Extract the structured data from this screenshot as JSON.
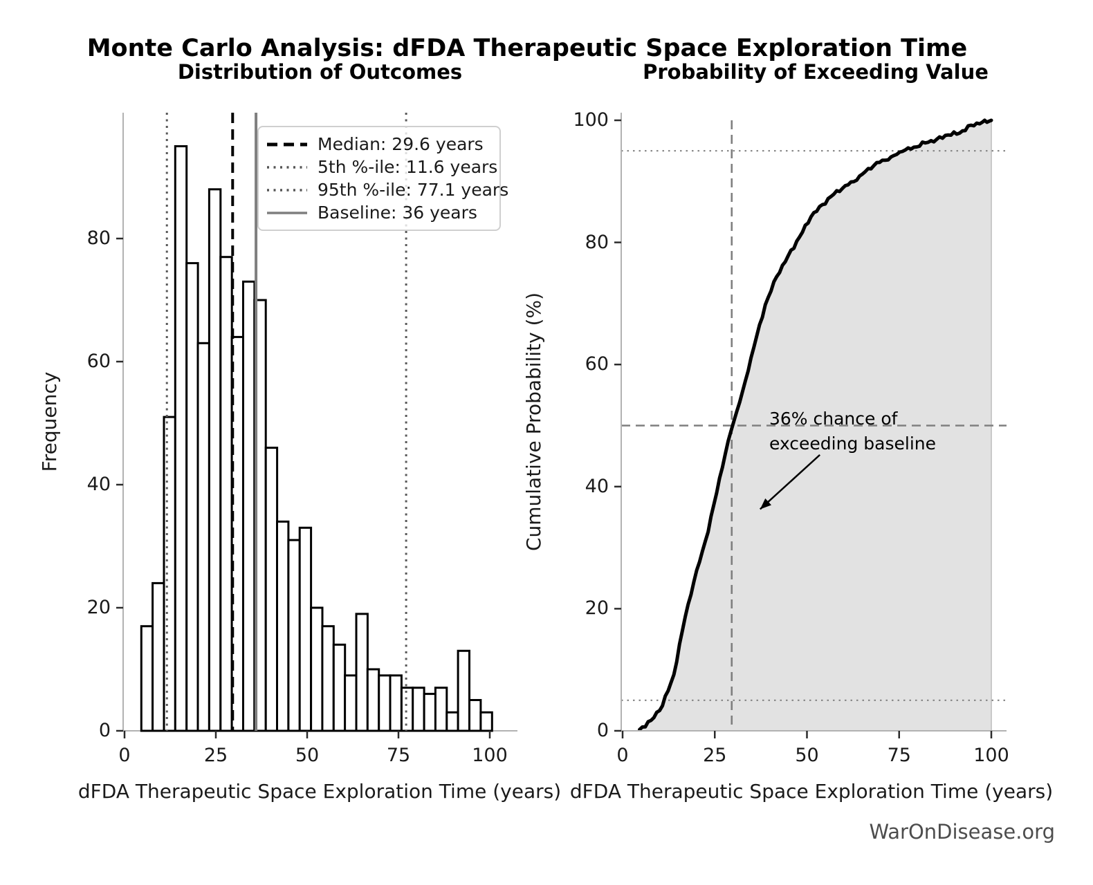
{
  "figure": {
    "title": "Monte Carlo Analysis: dFDA Therapeutic Space Exploration Time",
    "source": "WarOnDisease.org"
  },
  "left_chart": {
    "title": "Distribution of Outcomes",
    "xlabel": "dFDA Therapeutic Space Exploration Time (years)",
    "ylabel": "Frequency",
    "legend": [
      {
        "label": "Median: 29.6 years",
        "style": "dashed-black"
      },
      {
        "label": "5th %-ile: 11.6 years",
        "style": "dotted-gray"
      },
      {
        "label": "95th %-ile: 77.1 years",
        "style": "dotted-gray"
      },
      {
        "label": "Baseline: 36 years",
        "style": "solid-gray"
      }
    ]
  },
  "right_chart": {
    "title": "Probability of Exceeding Value",
    "xlabel": "dFDA Therapeutic Space Exploration Time (years)",
    "ylabel": "Cumulative Probability (%)",
    "annotation": {
      "line1": "36% chance of",
      "line2": "exceeding baseline"
    }
  },
  "chart_data": [
    {
      "type": "bar",
      "subtype": "histogram",
      "title": "Distribution of Outcomes",
      "xlabel": "dFDA Therapeutic Space Exploration Time (years)",
      "ylabel": "Frequency",
      "bin_start": 4.6,
      "bin_width": 3.097,
      "values": [
        17,
        24,
        51,
        95,
        76,
        63,
        88,
        77,
        64,
        73,
        70,
        46,
        34,
        31,
        33,
        20,
        17,
        14,
        9,
        19,
        10,
        9,
        9,
        7,
        7,
        6,
        7,
        3,
        13,
        5,
        3
      ],
      "total_samples": 1000,
      "bar_fill": "#ffffff",
      "bar_edge": "#000000",
      "xticks": [
        0,
        25,
        50,
        75,
        100
      ],
      "yticks": [
        0,
        20,
        40,
        60,
        80
      ],
      "xlim": [
        0,
        105
      ],
      "ylim": [
        0,
        100
      ],
      "grid": false,
      "legend_position": "upper right",
      "vlines": [
        {
          "x": 11.6,
          "style": "dotted-gray",
          "label": "5th %-ile: 11.6 years"
        },
        {
          "x": 29.6,
          "style": "dashed-black",
          "label": "Median: 29.6 years"
        },
        {
          "x": 36.0,
          "style": "solid-gray",
          "label": "Baseline: 36 years"
        },
        {
          "x": 77.1,
          "style": "dotted-gray",
          "label": "95th %-ile: 77.1 years"
        }
      ]
    },
    {
      "type": "line",
      "subtype": "cumulative-distribution",
      "title": "Probability of Exceeding Value",
      "xlabel": "dFDA Therapeutic Space Exploration Time (years)",
      "ylabel": "Cumulative Probability (%)",
      "x": [
        4.6,
        7.7,
        10.8,
        13.9,
        17.0,
        20.1,
        23.2,
        26.3,
        29.4,
        32.5,
        35.6,
        38.7,
        41.8,
        44.9,
        48.0,
        51.1,
        54.2,
        57.3,
        60.4,
        63.5,
        66.6,
        69.7,
        72.8,
        75.9,
        79.0,
        82.1,
        85.2,
        88.3,
        91.4,
        94.5,
        97.6,
        100.0
      ],
      "y": [
        0.2,
        1.7,
        4.1,
        9.2,
        18.7,
        26.3,
        32.6,
        41.4,
        49.1,
        55.5,
        62.8,
        69.8,
        74.4,
        77.8,
        80.9,
        84.2,
        86.2,
        87.9,
        89.3,
        90.2,
        92.1,
        93.1,
        94.0,
        94.9,
        95.6,
        96.3,
        96.9,
        97.6,
        97.9,
        99.2,
        99.7,
        100.0
      ],
      "line_color": "#000000",
      "fill": true,
      "fill_color": "#e2e2e2",
      "xticks": [
        0,
        25,
        50,
        75,
        100
      ],
      "yticks": [
        0,
        20,
        40,
        60,
        80,
        100
      ],
      "xlim": [
        0,
        105
      ],
      "ylim": [
        0,
        100
      ],
      "hlines": [
        {
          "y": 50,
          "style": "dashed-gray"
        },
        {
          "y": 5,
          "style": "dotted-gray-thin"
        },
        {
          "y": 95,
          "style": "dotted-gray-thin"
        }
      ],
      "vlines": [
        {
          "x": 29.6,
          "style": "dashed-gray"
        }
      ],
      "annotation": {
        "text": [
          "36% chance of",
          "exceeding baseline"
        ],
        "arrow_from": [
          53.5,
          45.2
        ],
        "arrow_to": [
          37.3,
          36.3
        ]
      }
    }
  ]
}
